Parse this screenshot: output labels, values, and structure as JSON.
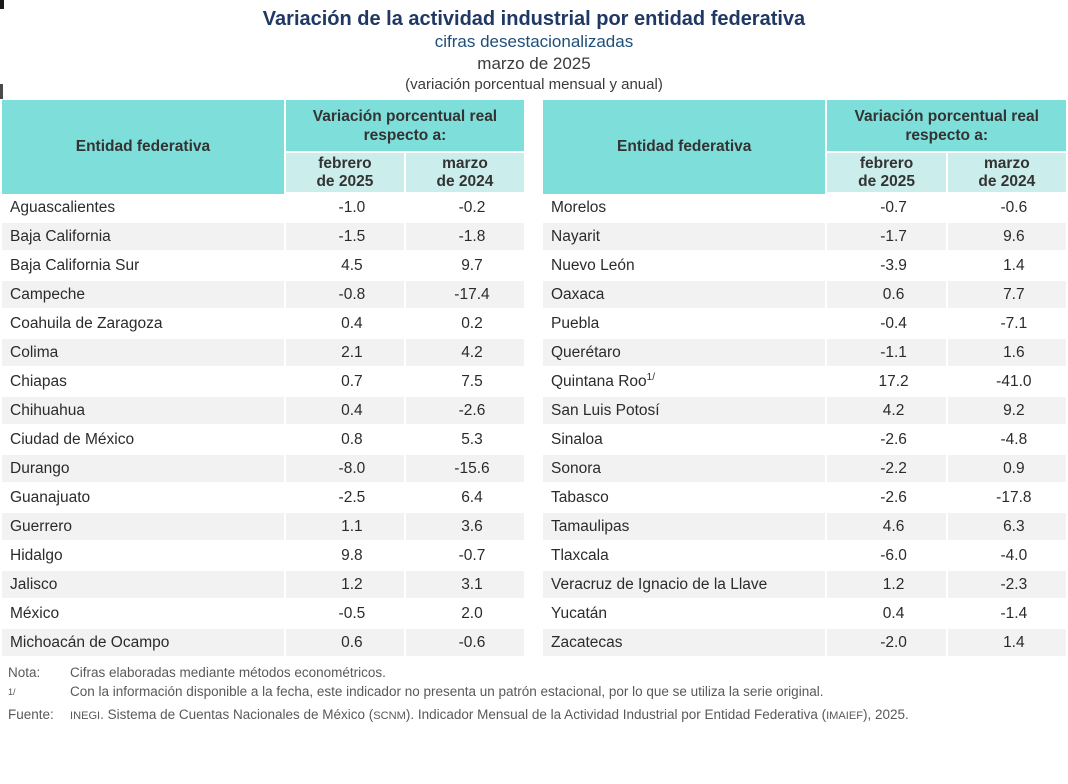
{
  "header": {
    "title": "Variación de la actividad industrial por entidad federativa",
    "subtitle": "cifras desestacionalizadas",
    "period": "marzo de 2025",
    "unit_note": "(variación porcentual mensual y anual)"
  },
  "table": {
    "entity_header": "Entidad federativa",
    "group_header": "Variación porcentual real respecto a:",
    "col_feb": "febrero\nde 2025",
    "col_mar": "marzo\nde 2024",
    "left_rows": [
      {
        "entity": "Aguascalientes",
        "feb": "-1.0",
        "mar": "-0.2"
      },
      {
        "entity": "Baja California",
        "feb": "-1.5",
        "mar": "-1.8"
      },
      {
        "entity": "Baja California Sur",
        "feb": "4.5",
        "mar": "9.7"
      },
      {
        "entity": "Campeche",
        "feb": "-0.8",
        "mar": "-17.4"
      },
      {
        "entity": "Coahuila de Zaragoza",
        "feb": "0.4",
        "mar": "0.2"
      },
      {
        "entity": "Colima",
        "feb": "2.1",
        "mar": "4.2"
      },
      {
        "entity": "Chiapas",
        "feb": "0.7",
        "mar": "7.5"
      },
      {
        "entity": "Chihuahua",
        "feb": "0.4",
        "mar": "-2.6"
      },
      {
        "entity": "Ciudad de México",
        "feb": "0.8",
        "mar": "5.3"
      },
      {
        "entity": "Durango",
        "feb": "-8.0",
        "mar": "-15.6"
      },
      {
        "entity": "Guanajuato",
        "feb": "-2.5",
        "mar": "6.4"
      },
      {
        "entity": "Guerrero",
        "feb": "1.1",
        "mar": "3.6"
      },
      {
        "entity": "Hidalgo",
        "feb": "9.8",
        "mar": "-0.7"
      },
      {
        "entity": "Jalisco",
        "feb": "1.2",
        "mar": "3.1"
      },
      {
        "entity": "México",
        "feb": "-0.5",
        "mar": "2.0"
      },
      {
        "entity": "Michoacán de Ocampo",
        "feb": "0.6",
        "mar": "-0.6"
      }
    ],
    "right_rows": [
      {
        "entity": "Morelos",
        "feb": "-0.7",
        "mar": "-0.6"
      },
      {
        "entity": "Nayarit",
        "feb": "-1.7",
        "mar": "9.6"
      },
      {
        "entity": "Nuevo León",
        "feb": "-3.9",
        "mar": "1.4"
      },
      {
        "entity": "Oaxaca",
        "feb": "0.6",
        "mar": "7.7"
      },
      {
        "entity": "Puebla",
        "feb": "-0.4",
        "mar": "-7.1"
      },
      {
        "entity": "Querétaro",
        "feb": "-1.1",
        "mar": "1.6"
      },
      {
        "entity": "Quintana Roo",
        "sup": "1/",
        "feb": "17.2",
        "mar": "-41.0"
      },
      {
        "entity": "San Luis Potosí",
        "feb": "4.2",
        "mar": "9.2"
      },
      {
        "entity": "Sinaloa",
        "feb": "-2.6",
        "mar": "-4.8"
      },
      {
        "entity": "Sonora",
        "feb": "-2.2",
        "mar": "0.9"
      },
      {
        "entity": "Tabasco",
        "feb": "-2.6",
        "mar": "-17.8"
      },
      {
        "entity": "Tamaulipas",
        "feb": "4.6",
        "mar": "6.3"
      },
      {
        "entity": "Tlaxcala",
        "feb": "-6.0",
        "mar": "-4.0"
      },
      {
        "entity": "Veracruz de Ignacio de la Llave",
        "feb": "1.2",
        "mar": "-2.3"
      },
      {
        "entity": "Yucatán",
        "feb": "0.4",
        "mar": "-1.4"
      },
      {
        "entity": "Zacatecas",
        "feb": "-2.0",
        "mar": "1.4"
      }
    ]
  },
  "footnotes": {
    "nota": {
      "label": "Nota:",
      "text": "Cifras elaboradas mediante métodos econométricos."
    },
    "ref": {
      "label": "1/",
      "text": "Con la información disponible a la fecha, este indicador no presenta un patrón estacional, por lo que se utiliza la serie original."
    },
    "fuente": {
      "label": "Fuente:",
      "s0": "INEGI",
      "s1": ". Sistema de Cuentas Nacionales de México (",
      "s2": "SCNM",
      "s3": "). Indicador Mensual de la Actividad Industrial por Entidad Federativa (",
      "s4": "IMAIEF",
      "s5": "), 2025."
    }
  },
  "colors": {
    "header_teal": "#7ededa",
    "subheader_teal": "#cbeeec",
    "row_stripe": "#f2f2f2",
    "title_navy": "#1f3864",
    "subtitle_navy": "#1f4e79",
    "footnote_gray": "#595959"
  }
}
